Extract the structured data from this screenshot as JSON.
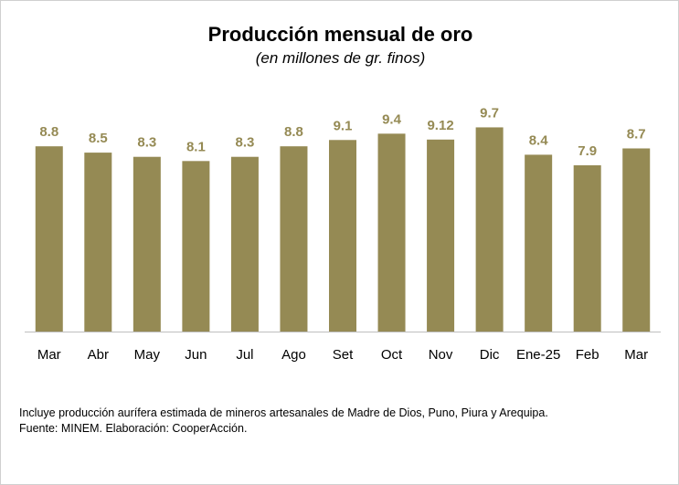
{
  "chart_data": {
    "type": "bar",
    "title": "Producción mensual de oro",
    "subtitle": "(en millones de gr. finos)",
    "categories": [
      "Mar",
      "Abr",
      "May",
      "Jun",
      "Jul",
      "Ago",
      "Set",
      "Oct",
      "Nov",
      "Dic",
      "Ene-25",
      "Feb",
      "Mar"
    ],
    "values": [
      8.8,
      8.5,
      8.3,
      8.1,
      8.3,
      8.8,
      9.1,
      9.4,
      9.12,
      9.7,
      8.4,
      7.9,
      8.7
    ],
    "data_labels": [
      "8.8",
      "8.5",
      "8.3",
      "8.1",
      "8.3",
      "8.8",
      "9.1",
      "9.4",
      "9.12",
      "9.7",
      "8.4",
      "7.9",
      "8.7"
    ],
    "ylim": [
      0,
      10.5
    ],
    "grid": false,
    "legend": "none",
    "bar_color": "#958a54",
    "label_color": "#958a54"
  },
  "notes": {
    "line1": "Incluye producción aurífera estimada de mineros artesanales de Madre de Dios, Puno, Piura y Arequipa.",
    "line2": "Fuente: MINEM. Elaboración: CooperAcción."
  }
}
